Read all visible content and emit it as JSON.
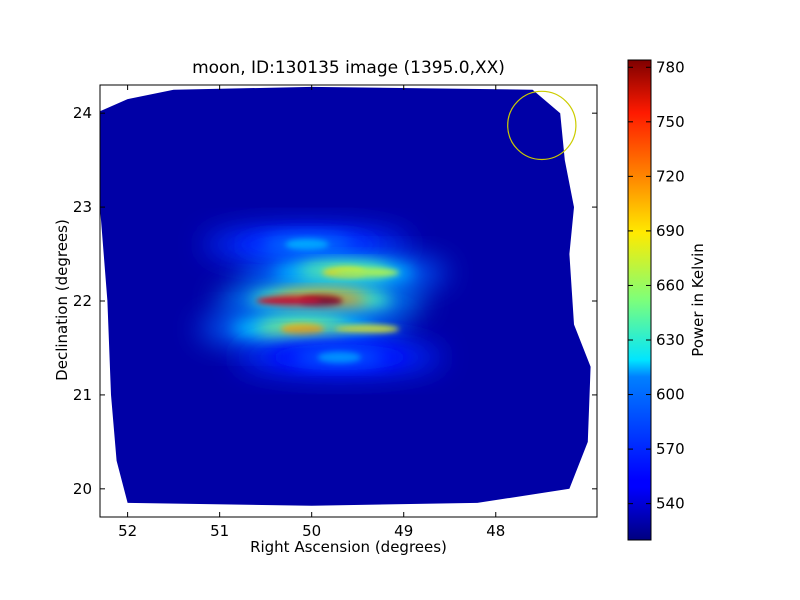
{
  "chart_data": {
    "type": "heatmap",
    "title": "moon, ID:130135 image (1395.0,XX)",
    "xlabel": "Right Ascension (degrees)",
    "ylabel": "Declination (degrees)",
    "xlim": [
      52.3,
      46.9
    ],
    "ylim": [
      19.7,
      24.3
    ],
    "x_ticks": [
      52,
      51,
      50,
      49,
      48
    ],
    "y_ticks": [
      20,
      21,
      22,
      23,
      24
    ],
    "colorbar": {
      "label": "Power in Kelvin",
      "range": [
        520,
        784
      ],
      "ticks": [
        540,
        570,
        600,
        630,
        660,
        690,
        720,
        750,
        780
      ],
      "colormap": "jet"
    },
    "background_level": 530,
    "coverage_polygon": [
      [
        52.0,
        19.85
      ],
      [
        50.0,
        19.82
      ],
      [
        48.2,
        19.85
      ],
      [
        47.2,
        20.0
      ],
      [
        47.0,
        20.5
      ],
      [
        46.97,
        21.3
      ],
      [
        47.15,
        21.75
      ],
      [
        47.2,
        22.5
      ],
      [
        47.15,
        23.0
      ],
      [
        47.25,
        23.5
      ],
      [
        47.3,
        24.0
      ],
      [
        47.6,
        24.25
      ],
      [
        50.0,
        24.28
      ],
      [
        51.5,
        24.25
      ],
      [
        52.0,
        24.15
      ],
      [
        52.3,
        24.02
      ],
      [
        52.3,
        23.0
      ],
      [
        52.22,
        22.0
      ],
      [
        52.18,
        21.0
      ],
      [
        52.12,
        20.3
      ]
    ],
    "emission_center": [
      49.9,
      22.0
    ],
    "fringes": [
      {
        "dec": 22.6,
        "peak": 600
      },
      {
        "dec": 22.3,
        "peak": 690
      },
      {
        "dec": 22.0,
        "peak": 775
      },
      {
        "dec": 21.7,
        "peak": 700
      },
      {
        "dec": 21.4,
        "peak": 590
      }
    ],
    "beam_circle": {
      "ra": 47.5,
      "dec": 23.87,
      "radius_deg": 0.37,
      "color": "#cccc00"
    }
  }
}
